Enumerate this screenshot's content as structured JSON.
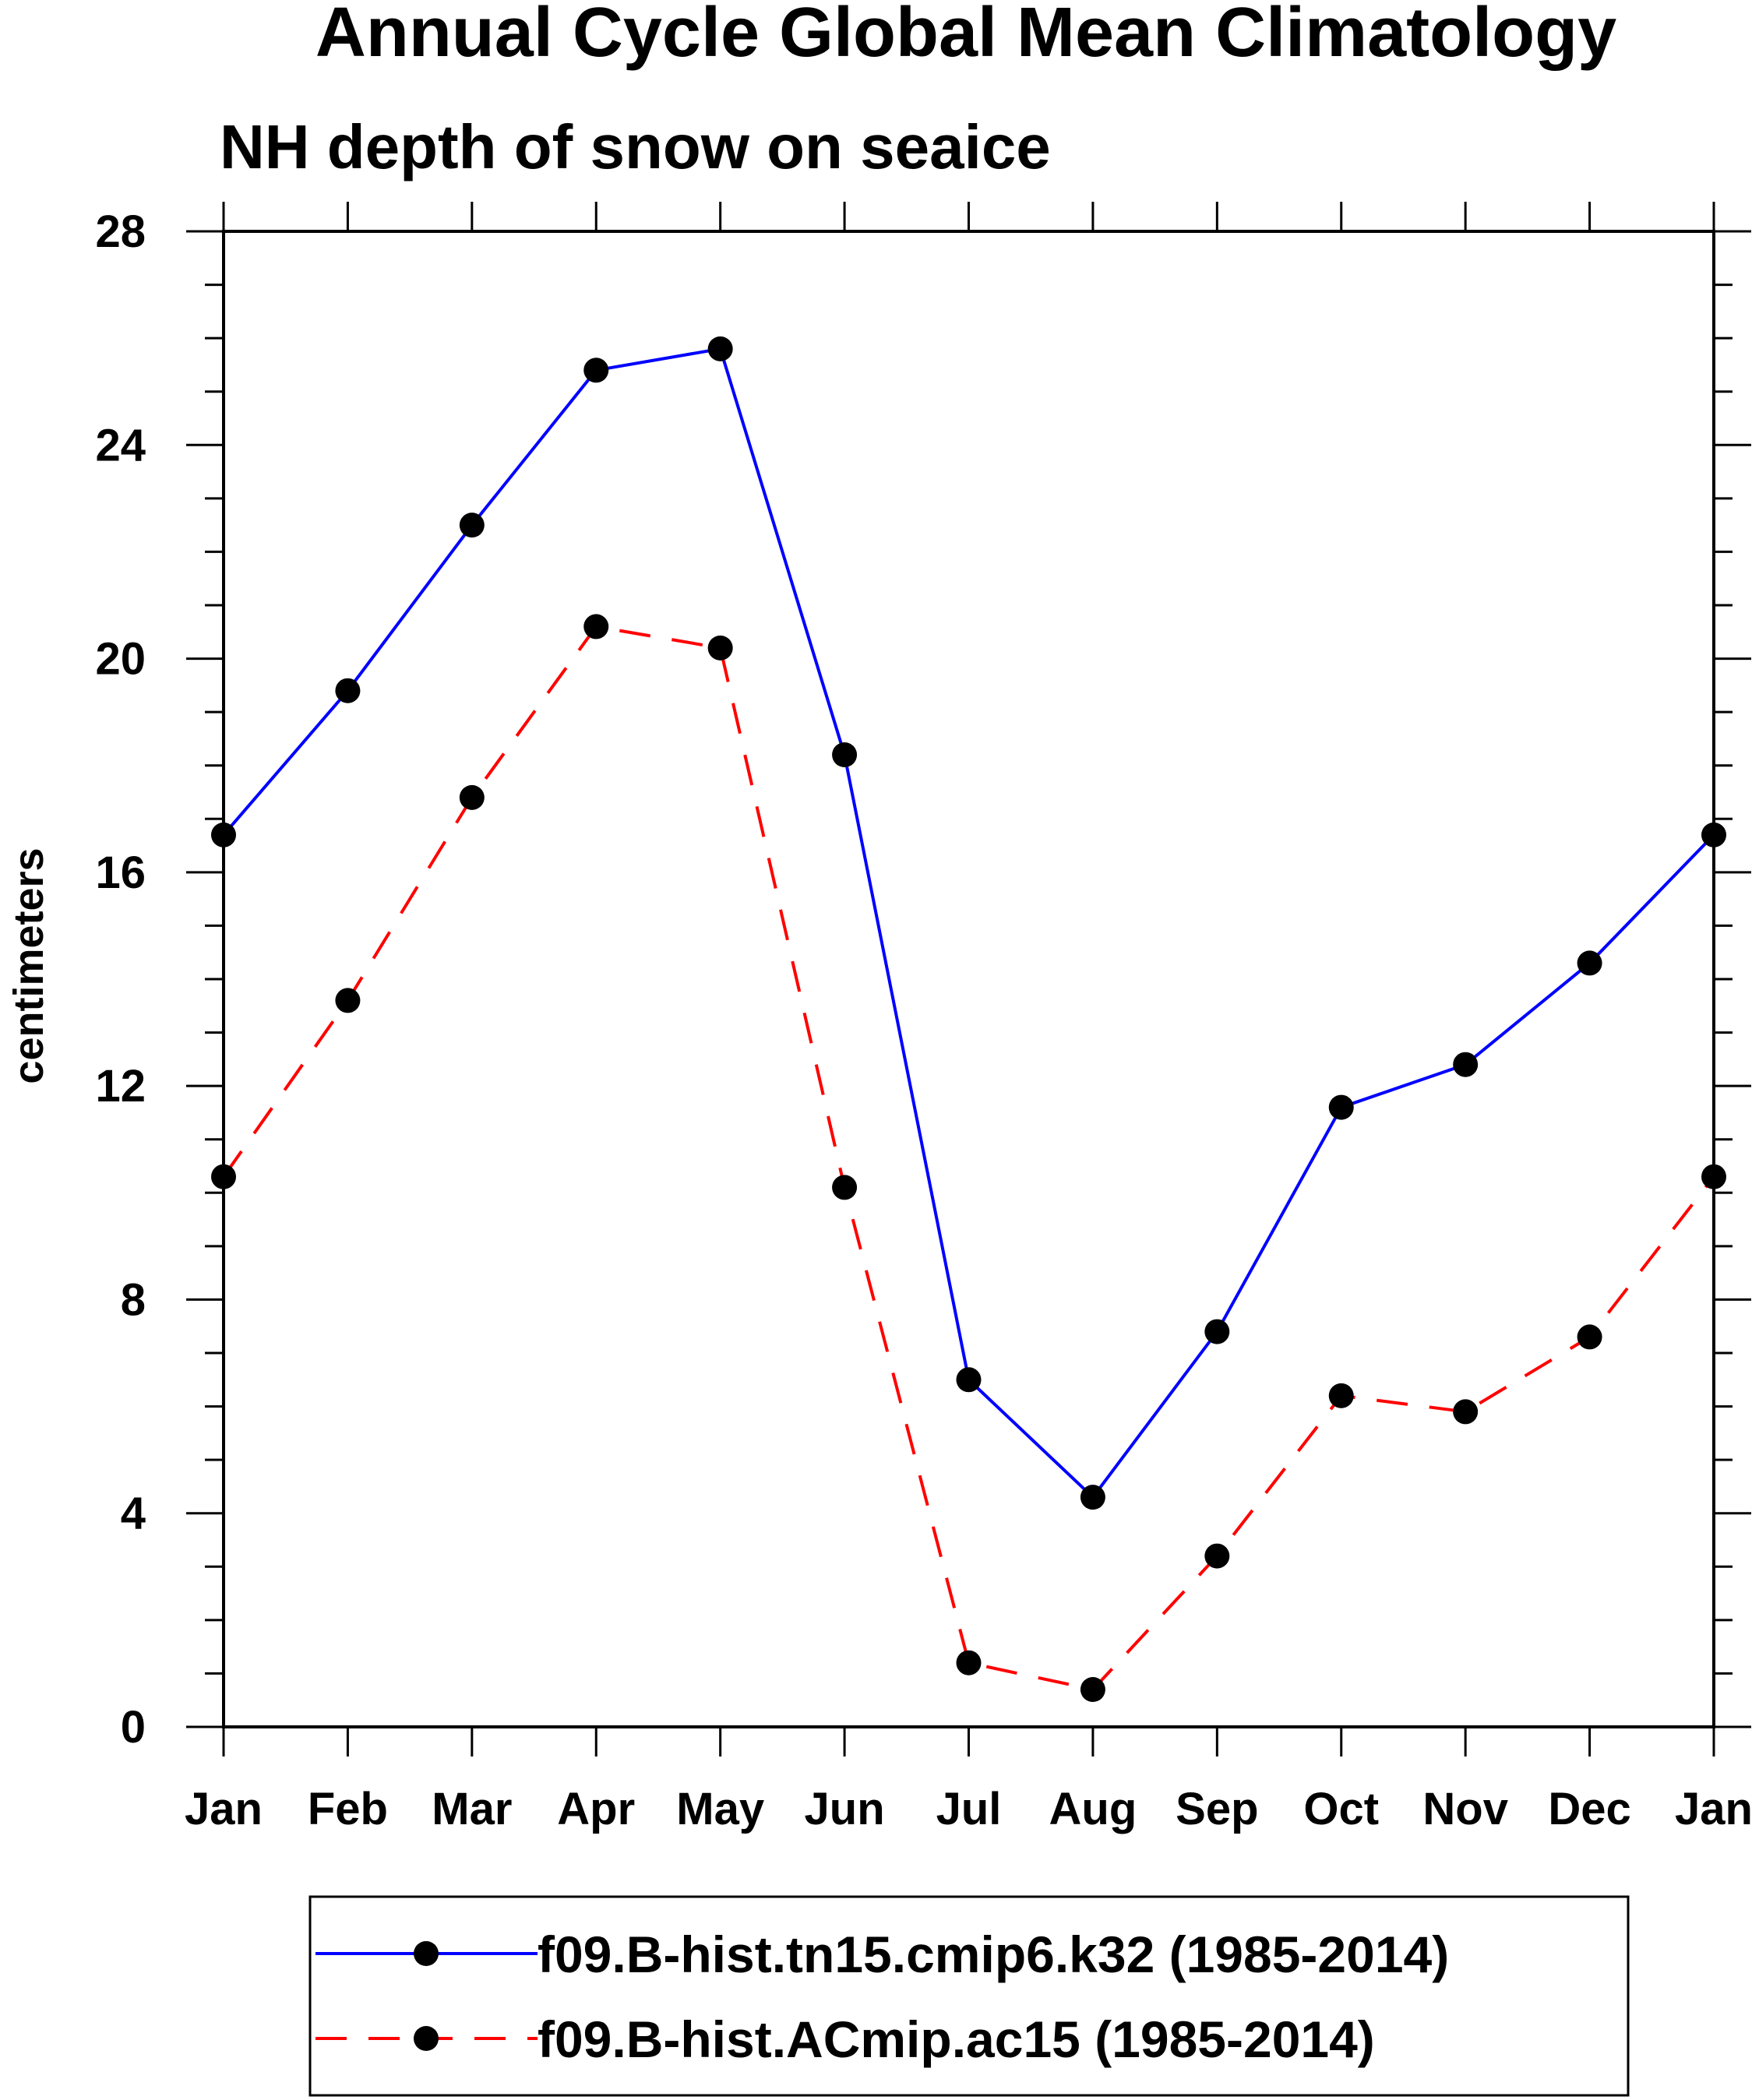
{
  "chart_data": {
    "type": "line",
    "title": "Annual Cycle Global Mean Climatology",
    "subtitle": "NH depth of snow on seaice",
    "xlabel": "",
    "ylabel": "centimeters",
    "categories": [
      "Jan",
      "Feb",
      "Mar",
      "Apr",
      "May",
      "Jun",
      "Jul",
      "Aug",
      "Sep",
      "Oct",
      "Nov",
      "Dec",
      "Jan"
    ],
    "ylim": [
      0,
      28
    ],
    "yticks": [
      "0",
      "4",
      "8",
      "12",
      "16",
      "20",
      "24",
      "28"
    ],
    "series": [
      {
        "name": "f09.B-hist.tn15.cmip6.k32 (1985-2014)",
        "color": "#0000ff",
        "dash": "solid",
        "values": [
          16.7,
          19.4,
          22.5,
          25.4,
          25.8,
          18.2,
          6.5,
          4.3,
          7.4,
          11.6,
          12.4,
          14.3,
          16.7
        ]
      },
      {
        "name": "f09.B-hist.ACmip.ac15 (1985-2014)",
        "color": "#ff0000",
        "dash": "dashed",
        "values": [
          10.3,
          13.6,
          17.4,
          20.6,
          20.2,
          10.1,
          1.2,
          0.7,
          3.2,
          6.2,
          5.9,
          7.3,
          10.3
        ]
      }
    ],
    "legend_position": "bottom",
    "grid": false
  }
}
